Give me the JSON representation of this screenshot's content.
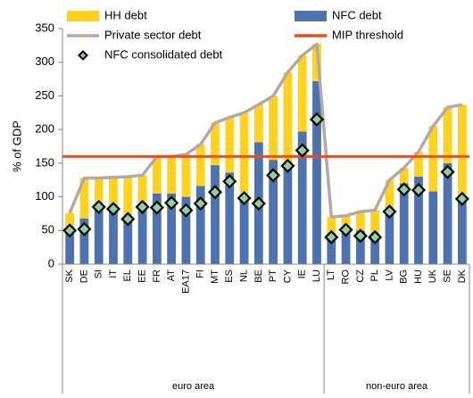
{
  "chart_data": {
    "type": "bar",
    "stacked": true,
    "y_label": "% of GDP",
    "categories": [
      "SK",
      "DE",
      "SI",
      "IT",
      "EL",
      "EE",
      "FR",
      "AT",
      "EA17",
      "FI",
      "MT",
      "ES",
      "NL",
      "BE",
      "PT",
      "CY",
      "IE",
      "LU",
      "LT",
      "RO",
      "CZ",
      "PL",
      "LV",
      "BG",
      "HU",
      "UK",
      "SE",
      "DK"
    ],
    "groups": [
      {
        "label": "euro area",
        "count": 18
      },
      {
        "label": "non-euro area",
        "count": 10
      }
    ],
    "series": [
      {
        "name": "HH debt",
        "kind": "bar",
        "color": "#ffd21f",
        "values": [
          31,
          60,
          40,
          47,
          65,
          47,
          55,
          55,
          63,
          62,
          63,
          82,
          127,
          56,
          95,
          135,
          113,
          55,
          25,
          22,
          28,
          36,
          45,
          23,
          37,
          97,
          83,
          140
        ]
      },
      {
        "name": "NFC debt",
        "kind": "bar",
        "color": "#4d72ae",
        "values": [
          45,
          68,
          88,
          82,
          65,
          85,
          105,
          105,
          100,
          116,
          147,
          136,
          98,
          181,
          155,
          150,
          197,
          272,
          45,
          50,
          50,
          44,
          80,
          120,
          130,
          108,
          150,
          97
        ]
      },
      {
        "name": "Private sector debt",
        "kind": "line",
        "color": "#b5a9a3",
        "values": [
          76,
          128,
          128,
          129,
          130,
          132,
          160,
          160,
          163,
          178,
          210,
          218,
          225,
          237,
          250,
          285,
          310,
          327,
          70,
          72,
          78,
          80,
          125,
          143,
          167,
          205,
          233,
          237
        ]
      },
      {
        "name": "MIP threshold",
        "kind": "hline",
        "color": "#e8501a",
        "value": 160
      },
      {
        "name": "NFC consolidated debt",
        "kind": "marker",
        "color": "#8fd19e",
        "values": [
          50,
          52,
          85,
          82,
          67,
          85,
          84,
          91,
          80,
          90,
          107,
          123,
          98,
          90,
          132,
          146,
          169,
          215,
          40,
          51,
          42,
          40,
          78,
          111,
          110,
          null,
          137,
          97
        ]
      }
    ],
    "ylim": [
      0,
      350
    ],
    "yticks": [
      0,
      50,
      100,
      150,
      200,
      250,
      300,
      350
    ],
    "grid": false
  }
}
